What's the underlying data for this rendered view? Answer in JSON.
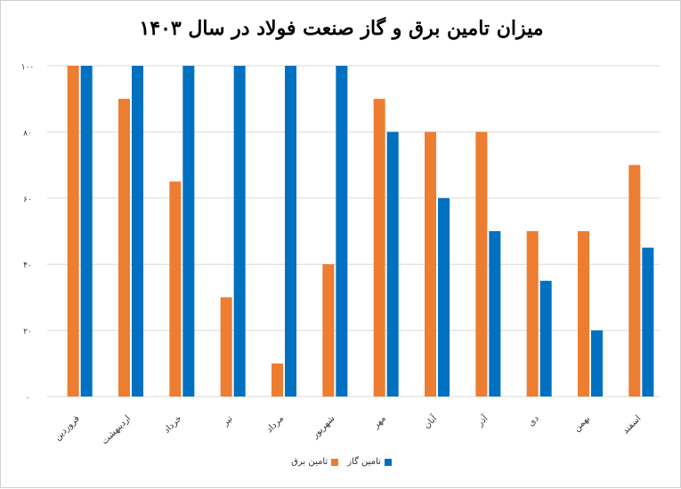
{
  "chart_data": {
    "type": "bar",
    "title": "میزان تامین برق و گاز صنعت فولاد در سال ۱۴۰۳",
    "categories": [
      "فروردین",
      "اردیبهشت",
      "خرداد",
      "تیر",
      "مرداد",
      "شهریور",
      "مهر",
      "آبان",
      "آذر",
      "دی",
      "بهمن",
      "اسفند"
    ],
    "series": [
      {
        "name": "تامین برق",
        "color": "#ED7D31",
        "values": [
          100,
          90,
          65,
          30,
          10,
          40,
          90,
          80,
          80,
          50,
          50,
          70
        ]
      },
      {
        "name": "تامین گاز",
        "color": "#0070C0",
        "values": [
          100,
          100,
          100,
          100,
          100,
          100,
          80,
          60,
          50,
          35,
          20,
          45
        ]
      }
    ],
    "yticks": [
      "۰",
      "۲۰",
      "۴۰",
      "۶۰",
      "۸۰",
      "۱۰۰"
    ],
    "ytick_values": [
      0,
      20,
      40,
      60,
      80,
      100
    ],
    "ylim": [
      0,
      100
    ],
    "grid": true,
    "legend": "bottom"
  }
}
